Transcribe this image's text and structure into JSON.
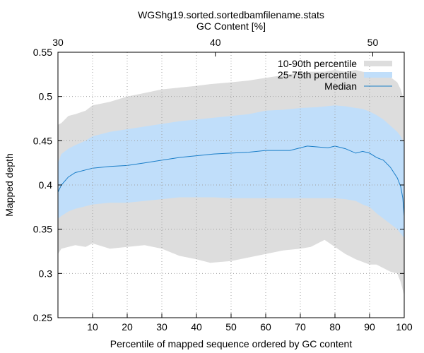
{
  "chart_data": {
    "type": "area",
    "title": "WGShg19.sorted.sortedbamfilename.stats",
    "x2label": "GC Content [%]",
    "xlabel": "Percentile of mapped sequence ordered by GC content",
    "ylabel": "Mapped depth",
    "xlim": [
      0,
      100
    ],
    "ylim": [
      0.25,
      0.55
    ],
    "x2lim": [
      30,
      52
    ],
    "xticks": [
      10,
      20,
      30,
      40,
      50,
      60,
      70,
      80,
      90,
      100
    ],
    "yticks": [
      0.25,
      0.3,
      0.35,
      0.4,
      0.45,
      0.5,
      0.55
    ],
    "x2ticks": [
      30,
      40,
      50
    ],
    "ytick_labels": [
      "0.25",
      "0.3",
      "0.35",
      "0.4",
      "0.45",
      "0.5",
      "0.55"
    ],
    "xtick_labels": [
      "10",
      "20",
      "30",
      "40",
      "50",
      "60",
      "70",
      "80",
      "90",
      "100"
    ],
    "x2tick_labels": [
      "30",
      "40",
      "50"
    ],
    "grid": true,
    "legend_position": "top-right",
    "series": [
      {
        "name": "10-90th percentile",
        "color": "#dddddd",
        "x": [
          0,
          1,
          3,
          5,
          8,
          10,
          15,
          20,
          25,
          30,
          35,
          40,
          44,
          50,
          55,
          60,
          65,
          70,
          73,
          77,
          80,
          83,
          86,
          88,
          90,
          92,
          94,
          96,
          98,
          99,
          100
        ],
        "upper": [
          0.468,
          0.47,
          0.478,
          0.48,
          0.484,
          0.49,
          0.494,
          0.5,
          0.504,
          0.508,
          0.51,
          0.512,
          0.514,
          0.516,
          0.518,
          0.521,
          0.524,
          0.527,
          0.528,
          0.528,
          0.53,
          0.528,
          0.53,
          0.528,
          0.527,
          0.526,
          0.524,
          0.522,
          0.516,
          0.508,
          0.495
        ],
        "lower": [
          0.322,
          0.328,
          0.33,
          0.332,
          0.33,
          0.334,
          0.328,
          0.33,
          0.332,
          0.328,
          0.32,
          0.316,
          0.312,
          0.314,
          0.318,
          0.322,
          0.326,
          0.328,
          0.33,
          0.338,
          0.33,
          0.322,
          0.316,
          0.313,
          0.31,
          0.31,
          0.306,
          0.302,
          0.3,
          0.29,
          0.275
        ]
      },
      {
        "name": "25-75th percentile",
        "color": "#c0defa",
        "x": [
          0,
          1,
          3,
          5,
          8,
          10,
          15,
          20,
          25,
          30,
          35,
          40,
          45,
          50,
          55,
          60,
          65,
          70,
          75,
          80,
          83,
          86,
          88,
          90,
          92,
          94,
          96,
          98,
          99,
          100
        ],
        "upper": [
          0.425,
          0.435,
          0.441,
          0.445,
          0.45,
          0.455,
          0.46,
          0.463,
          0.466,
          0.469,
          0.472,
          0.474,
          0.476,
          0.478,
          0.48,
          0.484,
          0.485,
          0.487,
          0.488,
          0.49,
          0.489,
          0.487,
          0.486,
          0.483,
          0.479,
          0.474,
          0.467,
          0.46,
          0.455,
          0.447
        ],
        "lower": [
          0.362,
          0.365,
          0.37,
          0.373,
          0.376,
          0.378,
          0.38,
          0.38,
          0.382,
          0.384,
          0.386,
          0.386,
          0.386,
          0.385,
          0.385,
          0.385,
          0.385,
          0.385,
          0.385,
          0.385,
          0.384,
          0.382,
          0.378,
          0.375,
          0.368,
          0.362,
          0.356,
          0.35,
          0.345,
          0.34
        ]
      },
      {
        "name": "Median",
        "color": "#1a7ec8",
        "x": [
          0,
          1,
          3,
          5,
          8,
          10,
          15,
          20,
          25,
          30,
          35,
          40,
          45,
          50,
          55,
          60,
          65,
          67,
          70,
          72,
          75,
          78,
          80,
          83,
          86,
          88,
          90,
          92,
          94,
          96,
          98,
          99,
          99.6,
          100
        ],
        "values": [
          0.392,
          0.4,
          0.409,
          0.414,
          0.417,
          0.419,
          0.421,
          0.422,
          0.425,
          0.428,
          0.431,
          0.433,
          0.435,
          0.436,
          0.437,
          0.439,
          0.439,
          0.439,
          0.442,
          0.444,
          0.443,
          0.442,
          0.444,
          0.441,
          0.436,
          0.438,
          0.436,
          0.431,
          0.428,
          0.42,
          0.408,
          0.398,
          0.385,
          0.365
        ]
      }
    ]
  }
}
